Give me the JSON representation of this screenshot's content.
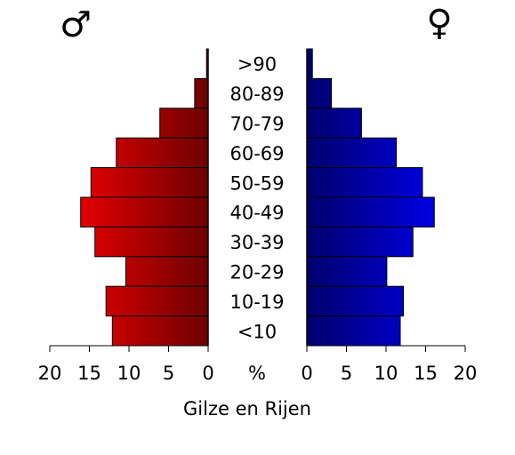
{
  "chart_data": {
    "type": "pyramid",
    "categories": [
      ">90",
      "80-89",
      "70-79",
      "60-69",
      "50-59",
      "40-49",
      "30-39",
      "20-29",
      "10-19",
      "<10"
    ],
    "series": [
      {
        "name": "♂",
        "color": "#ff0000",
        "values": [
          0.2,
          1.7,
          6.1,
          11.6,
          14.8,
          16.1,
          14.3,
          10.4,
          12.9,
          12.1
        ]
      },
      {
        "name": "♀",
        "color": "#0000ff",
        "values": [
          0.7,
          3.1,
          6.9,
          11.3,
          14.6,
          16.1,
          13.4,
          10.1,
          12.2,
          11.8
        ]
      }
    ],
    "xlim": [
      0,
      20
    ],
    "xticks": [
      0,
      5,
      10,
      15,
      20
    ],
    "center_label": "%",
    "xlabel": "Gilze en Rijen"
  }
}
